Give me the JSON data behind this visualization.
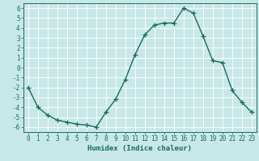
{
  "x": [
    0,
    1,
    2,
    3,
    4,
    5,
    6,
    7,
    8,
    9,
    10,
    11,
    12,
    13,
    14,
    15,
    16,
    17,
    18,
    19,
    20,
    21,
    22,
    23
  ],
  "y": [
    -2,
    -4,
    -4.8,
    -5.3,
    -5.5,
    -5.7,
    -5.8,
    -6.0,
    -4.5,
    -3.2,
    -1.2,
    1.3,
    3.3,
    4.3,
    4.5,
    4.5,
    6.0,
    5.5,
    3.2,
    0.7,
    0.5,
    -2.3,
    -3.5,
    -4.5
  ],
  "line_color": "#1a6b5a",
  "marker": "+",
  "markersize": 4,
  "linewidth": 1.0,
  "background_color": "#c8e8e8",
  "grid_color": "#ffffff",
  "xlabel": "Humidex (Indice chaleur)",
  "xlabel_fontsize": 6.5,
  "xlim": [
    -0.5,
    23.5
  ],
  "ylim": [
    -6.5,
    6.5
  ],
  "yticks": [
    -6,
    -5,
    -4,
    -3,
    -2,
    -1,
    0,
    1,
    2,
    3,
    4,
    5,
    6
  ],
  "xticks": [
    0,
    1,
    2,
    3,
    4,
    5,
    6,
    7,
    8,
    9,
    10,
    11,
    12,
    13,
    14,
    15,
    16,
    17,
    18,
    19,
    20,
    21,
    22,
    23
  ],
  "tick_fontsize": 5.5,
  "tick_color": "#1a6b5a"
}
